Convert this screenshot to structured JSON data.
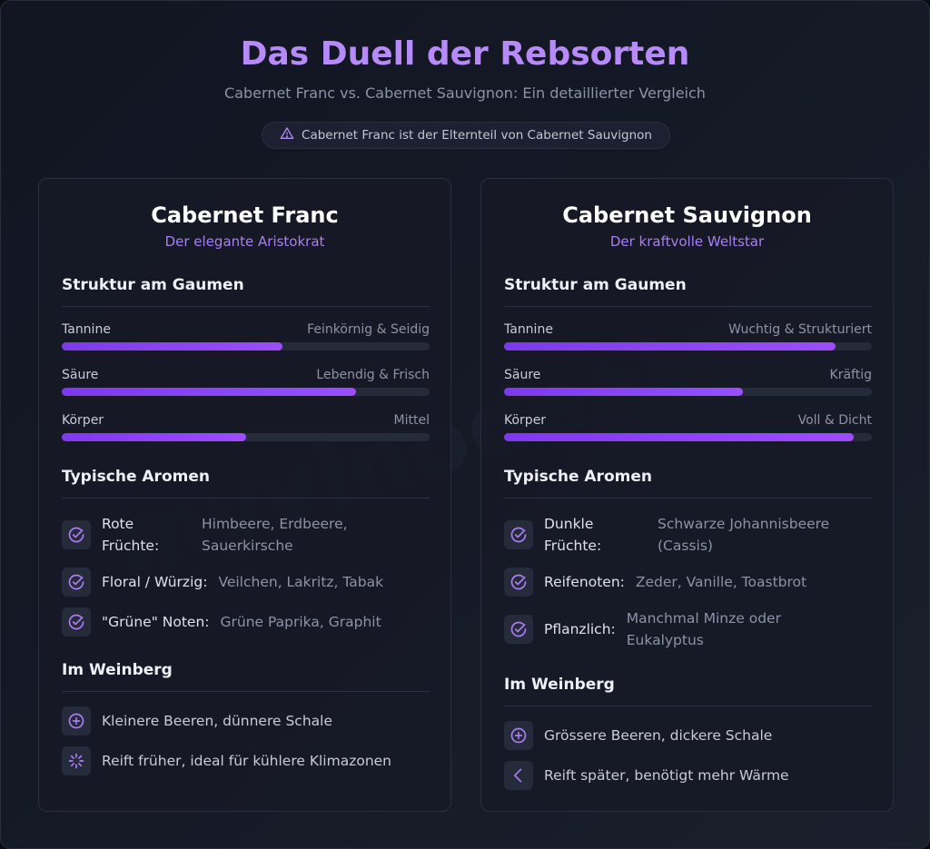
{
  "header": {
    "title": "Das Duell der Rebsorten",
    "subtitle": "Cabernet Franc vs. Cabernet Sauvignon: Ein detaillierter Vergleich",
    "notice": "Cabernet Franc ist der Elternteil von Cabernet Sauvignon",
    "watermark": "myvinodeal.ch"
  },
  "colors": {
    "accent": "#b68af8",
    "bar": "#8b3ff5",
    "track": "#262b3a"
  },
  "left": {
    "title": "Cabernet Franc",
    "subtitle": "Der elegante Aristokrat",
    "structure_title": "Struktur am Gaumen",
    "metrics": [
      {
        "label": "Tannine",
        "value": "Feinkörnig & Seidig",
        "level": 0.6
      },
      {
        "label": "Säure",
        "value": "Lebendig & Frisch",
        "level": 0.8
      },
      {
        "label": "Körper",
        "value": "Mittel",
        "level": 0.5
      }
    ],
    "aromas_title": "Typische Aromen",
    "aromas": [
      {
        "key": "Rote Früchte:",
        "value": "Himbeere, Erdbeere, Sauerkirsche",
        "icon": "check-circle-icon"
      },
      {
        "key": "Floral / Würzig:",
        "value": "Veilchen, Lakritz, Tabak",
        "icon": "check-circle-icon"
      },
      {
        "key": "\"Grüne\" Noten:",
        "value": "Grüne Paprika, Graphit",
        "icon": "check-circle-icon"
      }
    ],
    "vineyard_title": "Im Weinberg",
    "vineyard": [
      {
        "text": "Kleinere Beeren, dünnere Schale",
        "icon": "plus-circle-icon"
      },
      {
        "text": "Reift früher, ideal für kühlere Klimazonen",
        "icon": "loader-icon"
      }
    ]
  },
  "right": {
    "title": "Cabernet Sauvignon",
    "subtitle": "Der kraftvolle Weltstar",
    "structure_title": "Struktur am Gaumen",
    "metrics": [
      {
        "label": "Tannine",
        "value": "Wuchtig & Strukturiert",
        "level": 0.9
      },
      {
        "label": "Säure",
        "value": "Kräftig",
        "level": 0.65
      },
      {
        "label": "Körper",
        "value": "Voll & Dicht",
        "level": 0.95
      }
    ],
    "aromas_title": "Typische Aromen",
    "aromas": [
      {
        "key": "Dunkle Früchte:",
        "value": "Schwarze Johannisbeere (Cassis)",
        "icon": "check-circle-icon"
      },
      {
        "key": "Reifenoten:",
        "value": "Zeder, Vanille, Toastbrot",
        "icon": "check-circle-icon"
      },
      {
        "key": "Pflanzlich:",
        "value": "Manchmal Minze oder Eukalyptus",
        "icon": "check-circle-icon"
      }
    ],
    "vineyard_title": "Im Weinberg",
    "vineyard": [
      {
        "text": "Grössere Beeren, dickere Schale",
        "icon": "plus-circle-icon"
      },
      {
        "text": "Reift später, benötigt mehr Wärme",
        "icon": "chevron-left-icon"
      }
    ]
  }
}
